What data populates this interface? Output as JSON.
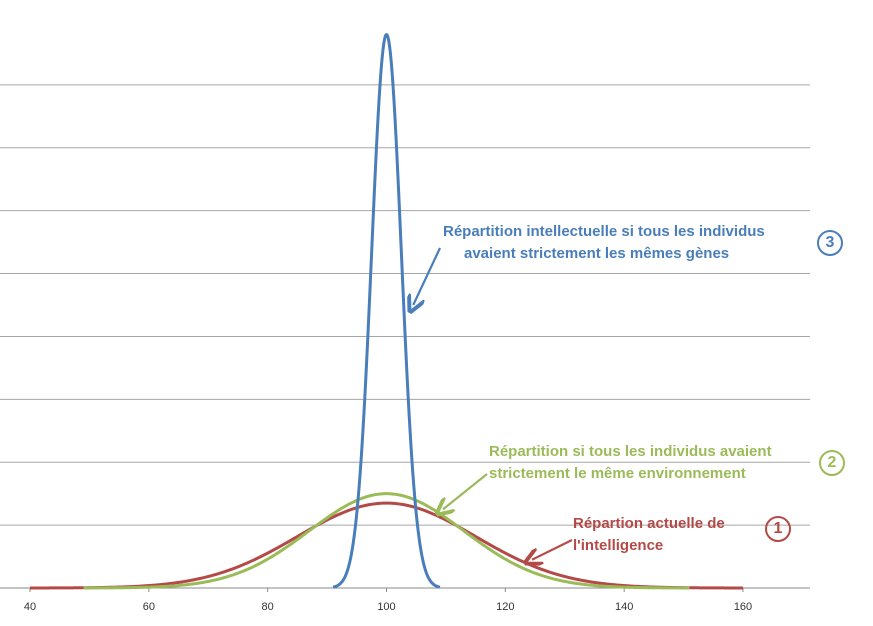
{
  "chart_data": {
    "type": "line",
    "x_ticks": [
      40,
      60,
      80,
      100,
      120,
      140,
      160
    ],
    "xlim": [
      40,
      160
    ],
    "ylim": [
      0,
      9
    ],
    "grid": "horizontal",
    "legend": "none (inline annotations)",
    "series": [
      {
        "id": "s3",
        "mean": 100,
        "sd": 2.5,
        "peak": 8.8,
        "x_range": [
          91,
          109
        ],
        "color": "#4a7ebb"
      },
      {
        "id": "s2",
        "mean": 100,
        "sd": 13,
        "peak": 1.5,
        "x_range": [
          49,
          151
        ],
        "color": "#9bbb59"
      },
      {
        "id": "s1",
        "mean": 100,
        "sd": 15,
        "peak": 1.35,
        "x_range": [
          40,
          160
        ],
        "color": "#b34a48"
      }
    ],
    "annotations": [
      {
        "id": "a3",
        "lines": [
          "Répartition intellectuelle si tous les individus",
          "avaient strictement les mêmes gènes"
        ],
        "badge": "3",
        "color": "#4a7ebb",
        "arrow_to_x": 104.5,
        "arrow_to_y": 4.5
      },
      {
        "id": "a2",
        "lines": [
          "Répartition si tous les individus avaient",
          "strictement le même environnement"
        ],
        "badge": "2",
        "color": "#9bbb59",
        "arrow_to_x": 109.5,
        "arrow_to_y": 1.25
      },
      {
        "id": "a1",
        "lines": [
          "Répartion actuelle de",
          "l'intelligence"
        ],
        "badge": "1",
        "color": "#b34a48",
        "arrow_to_x": 124.5,
        "arrow_to_y": 0.45
      }
    ]
  },
  "colors": {
    "grid": "#a6a6a6",
    "axis": "#888888"
  }
}
